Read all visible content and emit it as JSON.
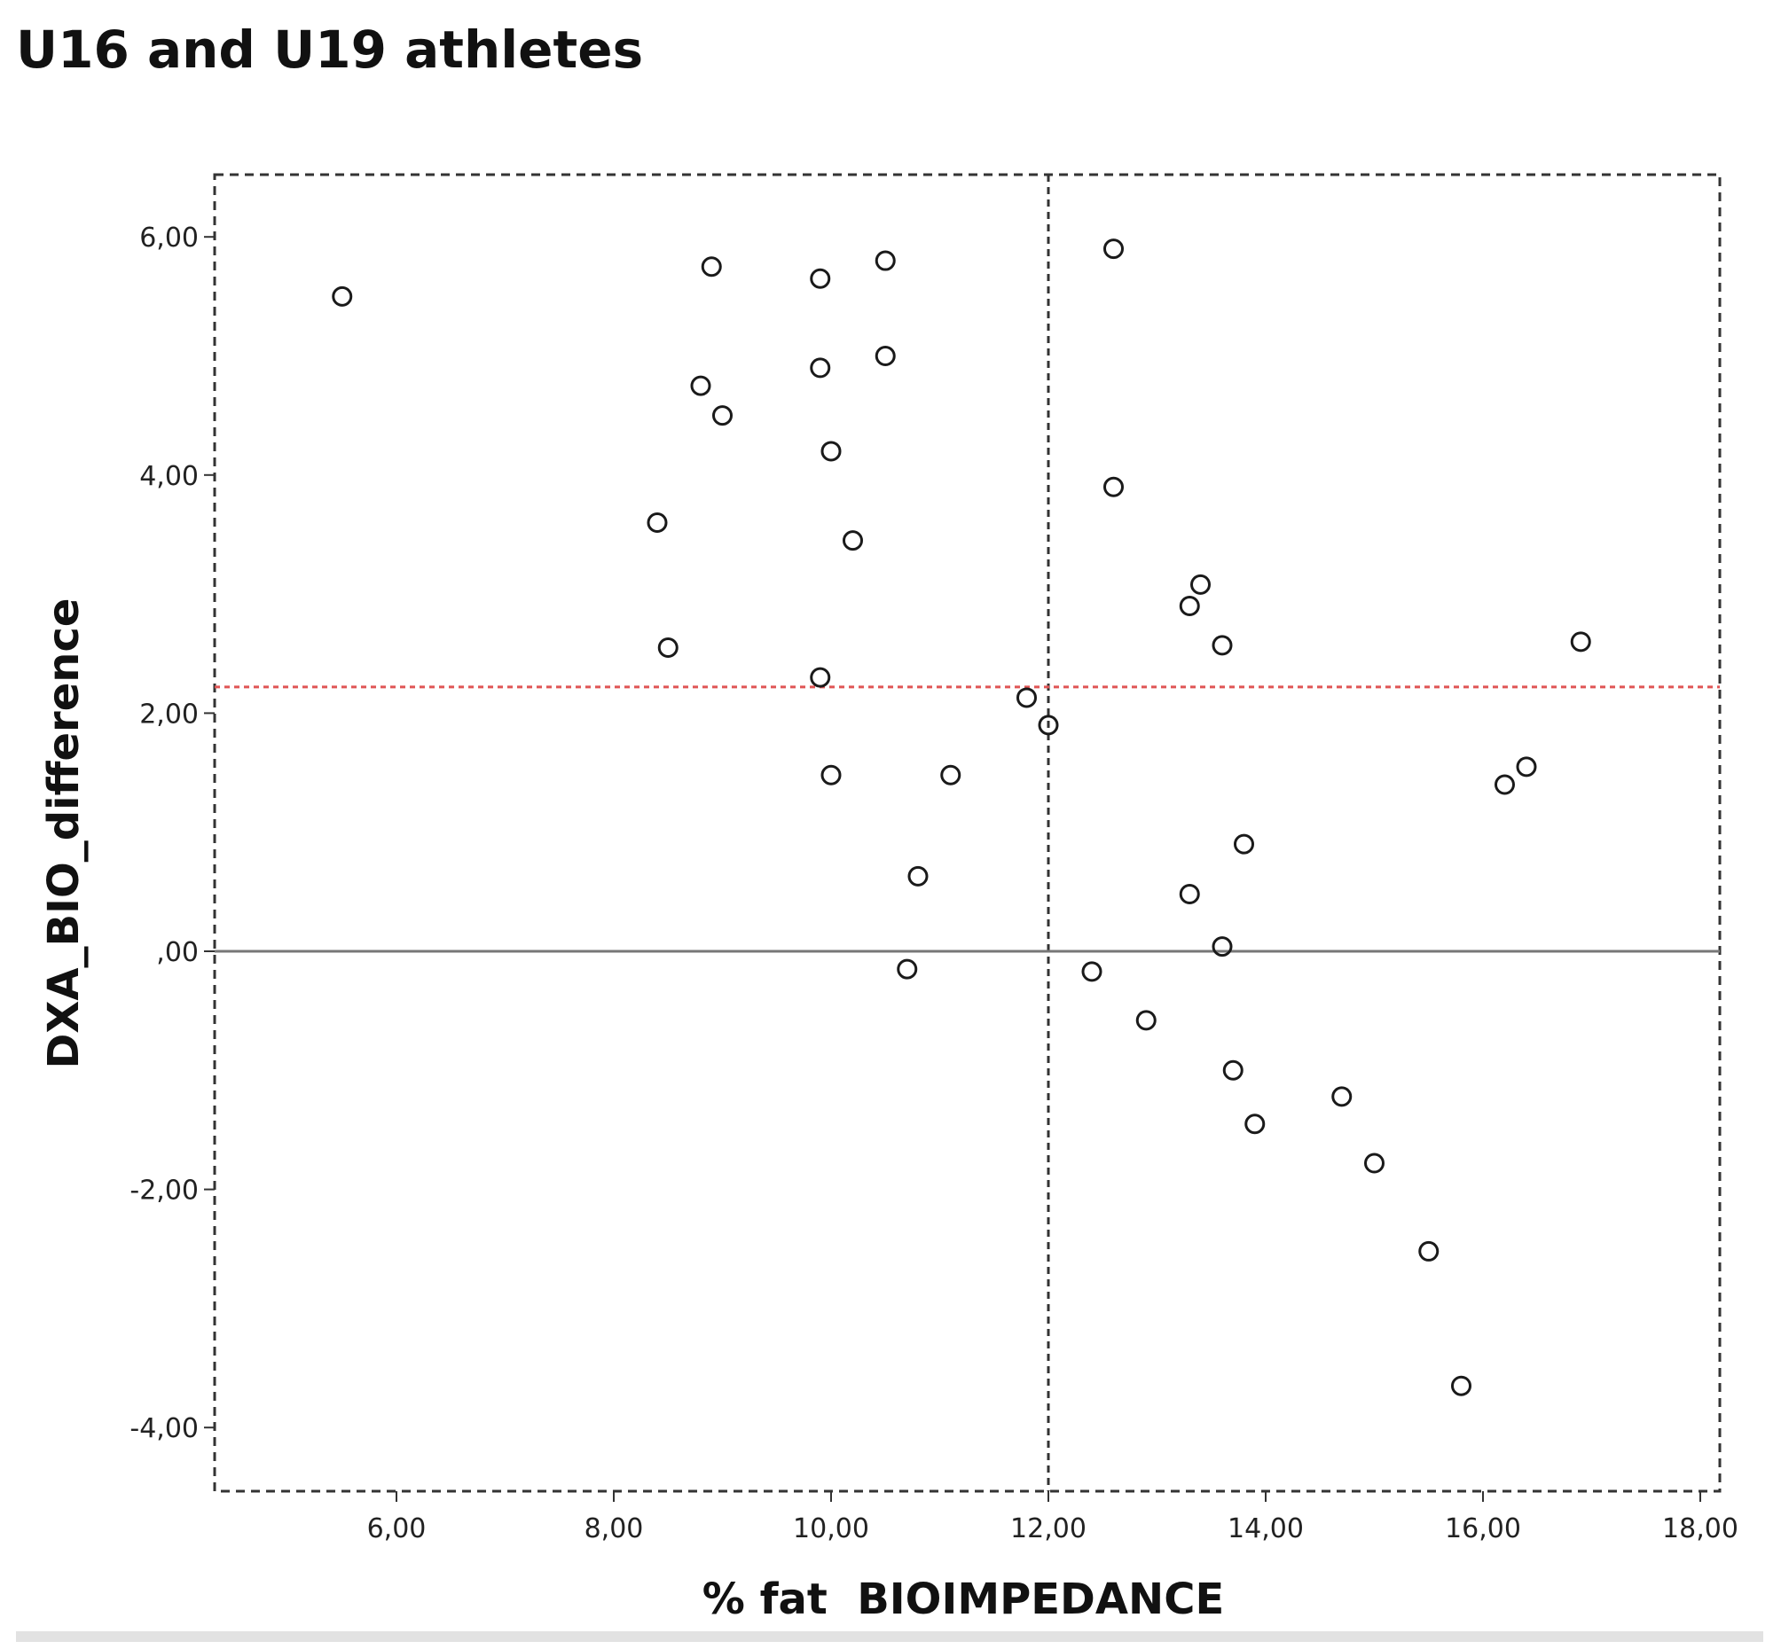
{
  "chart_data": {
    "type": "scatter",
    "title": "U16 and U19 athletes",
    "xlabel": "% fat  BIOIMPEDANCE",
    "ylabel": "DXA_BIO_difference",
    "xlim": [
      4.3,
      18.2
    ],
    "ylim": [
      -4.6,
      6.6
    ],
    "xticks": [
      {
        "value": 6,
        "label": "6,00"
      },
      {
        "value": 8,
        "label": "8,00"
      },
      {
        "value": 10,
        "label": "10,00"
      },
      {
        "value": 12,
        "label": "12,00"
      },
      {
        "value": 14,
        "label": "14,00"
      },
      {
        "value": 16,
        "label": "16,00"
      },
      {
        "value": 18,
        "label": "18,00"
      }
    ],
    "yticks": [
      {
        "value": 6,
        "label": "6,00"
      },
      {
        "value": 4,
        "label": "4,00"
      },
      {
        "value": 2,
        "label": "2,00"
      },
      {
        "value": 0,
        "label": ",00"
      },
      {
        "value": -2,
        "label": "-2,00"
      },
      {
        "value": -4,
        "label": "-4,00"
      }
    ],
    "reference_lines": {
      "mean_difference_y": 2.22,
      "zero_line_y": 0,
      "vertical_x": 12,
      "colors": {
        "mean": "#e05555",
        "zero": "#777777",
        "vertical": "#333333"
      }
    },
    "grid": false,
    "points": [
      {
        "x": 5.5,
        "y": 5.5
      },
      {
        "x": 8.4,
        "y": 3.6
      },
      {
        "x": 8.5,
        "y": 2.55
      },
      {
        "x": 8.8,
        "y": 4.75
      },
      {
        "x": 8.9,
        "y": 5.75
      },
      {
        "x": 9.0,
        "y": 4.5
      },
      {
        "x": 9.9,
        "y": 5.65
      },
      {
        "x": 9.9,
        "y": 4.9
      },
      {
        "x": 9.9,
        "y": 2.3
      },
      {
        "x": 10.0,
        "y": 4.2
      },
      {
        "x": 10.0,
        "y": 1.48
      },
      {
        "x": 10.2,
        "y": 3.45
      },
      {
        "x": 10.5,
        "y": 5.8
      },
      {
        "x": 10.5,
        "y": 5.0
      },
      {
        "x": 10.7,
        "y": -0.15
      },
      {
        "x": 10.8,
        "y": 0.63
      },
      {
        "x": 11.1,
        "y": 1.48
      },
      {
        "x": 11.8,
        "y": 2.13
      },
      {
        "x": 12.0,
        "y": 1.9
      },
      {
        "x": 12.4,
        "y": -0.17
      },
      {
        "x": 12.6,
        "y": 5.9
      },
      {
        "x": 12.6,
        "y": 3.9
      },
      {
        "x": 12.9,
        "y": -0.58
      },
      {
        "x": 13.3,
        "y": 2.9
      },
      {
        "x": 13.3,
        "y": 0.48
      },
      {
        "x": 13.4,
        "y": 3.08
      },
      {
        "x": 13.6,
        "y": 2.57
      },
      {
        "x": 13.6,
        "y": 0.04
      },
      {
        "x": 13.7,
        "y": -1.0
      },
      {
        "x": 13.8,
        "y": 0.9
      },
      {
        "x": 13.9,
        "y": -1.45
      },
      {
        "x": 14.7,
        "y": -1.22
      },
      {
        "x": 15.0,
        "y": -1.78
      },
      {
        "x": 15.5,
        "y": -2.52
      },
      {
        "x": 15.8,
        "y": -3.65
      },
      {
        "x": 16.2,
        "y": 1.4
      },
      {
        "x": 16.4,
        "y": 1.55
      },
      {
        "x": 16.9,
        "y": 2.6
      }
    ]
  }
}
